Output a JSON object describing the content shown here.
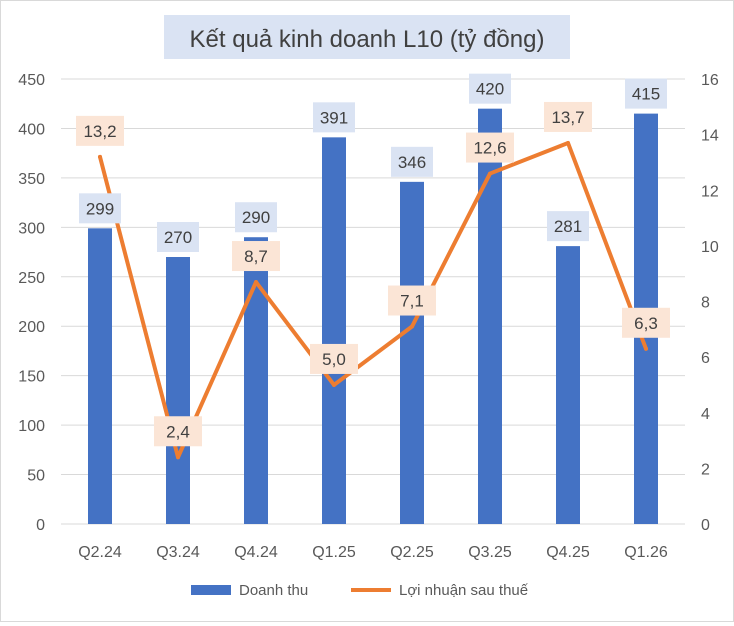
{
  "chart_data": {
    "type": "bar",
    "title": "Kết quả kinh doanh L10 (tỷ đồng)",
    "categories": [
      "Q2.24",
      "Q3.24",
      "Q4.24",
      "Q1.25",
      "Q2.25",
      "Q3.25",
      "Q4.25",
      "Q1.26"
    ],
    "series": [
      {
        "name": "Doanh thu",
        "type": "bar",
        "axis": "left",
        "values": [
          299,
          270,
          290,
          391,
          346,
          420,
          281,
          415
        ],
        "labels": [
          "299",
          "270",
          "290",
          "391",
          "346",
          "420",
          "281",
          "415"
        ],
        "color": "#4472C4"
      },
      {
        "name": "Lợi nhuận sau thuế",
        "type": "line",
        "axis": "right",
        "values": [
          13.2,
          2.4,
          8.7,
          5.0,
          7.1,
          12.6,
          13.7,
          6.3
        ],
        "labels": [
          "13,2",
          "2,4",
          "8,7",
          "5,0",
          "7,1",
          "12,6",
          "13,7",
          "6,3"
        ],
        "color": "#ED7D31"
      }
    ],
    "y_left": {
      "min": 0,
      "max": 450,
      "step": 50,
      "ticks": [
        "0",
        "50",
        "100",
        "150",
        "200",
        "250",
        "300",
        "350",
        "400",
        "450"
      ]
    },
    "y_right": {
      "min": 0,
      "max": 16,
      "step": 2,
      "ticks": [
        "0",
        "2",
        "4",
        "6",
        "8",
        "10",
        "12",
        "14",
        "16"
      ]
    },
    "grid": true,
    "legend": "bottom",
    "colors": {
      "bar_label_bg": "#DAE3F3",
      "line_label_bg": "#FBE5D6",
      "title_bg": "#DAE3F3",
      "gridline": "#D9D9D9",
      "text": "#595959"
    }
  }
}
